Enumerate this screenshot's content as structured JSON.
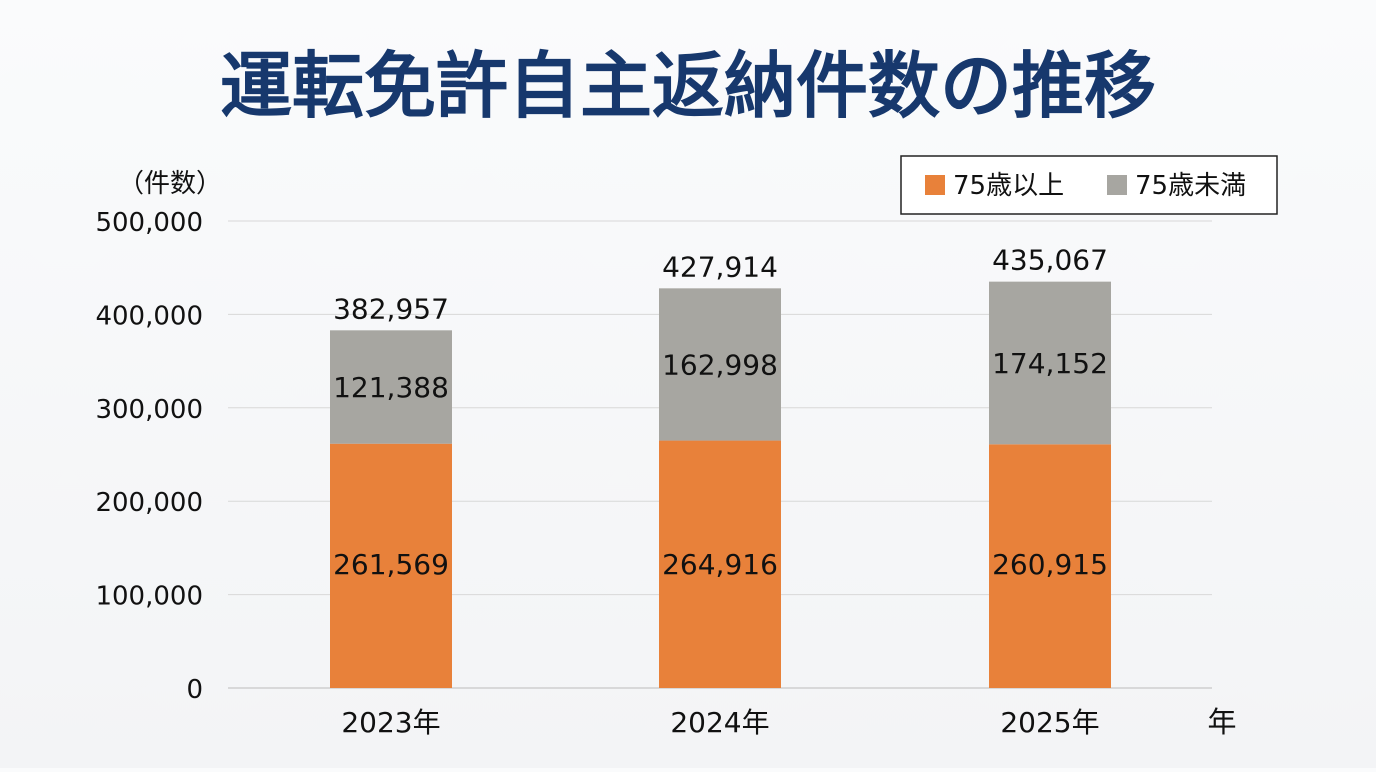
{
  "chart_data": {
    "type": "bar",
    "stacked": true,
    "title": "運転免許自主返納件数の推移",
    "ylabel": "（件数）",
    "xlabel": "年",
    "categories": [
      "2023年",
      "2024年",
      "2025年"
    ],
    "series": [
      {
        "name": "75歳以上",
        "color": "#e8813a",
        "values": [
          261569,
          264916,
          260915
        ]
      },
      {
        "name": "75歳未満",
        "color": "#a7a6a1",
        "values": [
          121388,
          162998,
          174152
        ]
      }
    ],
    "segment_labels": [
      [
        "261,569",
        "264,916",
        "260,915"
      ],
      [
        "121,388",
        "162,998",
        "174,152"
      ]
    ],
    "totals": [
      382957,
      427914,
      435067
    ],
    "total_labels": [
      "382,957",
      "427,914",
      "435,067"
    ],
    "ylim": [
      0,
      500000
    ],
    "yticks": [
      0,
      100000,
      200000,
      300000,
      400000,
      500000
    ],
    "ytick_labels": [
      "0",
      "100,000",
      "200,000",
      "300,000",
      "400,000",
      "500,000"
    ],
    "grid": true,
    "legend_position": "top-right",
    "colors": {
      "title": "#17386d",
      "text": "#111111",
      "grid": "#d8d8d8",
      "axis": "#cfcfcf",
      "legend_border": "#222222"
    }
  }
}
